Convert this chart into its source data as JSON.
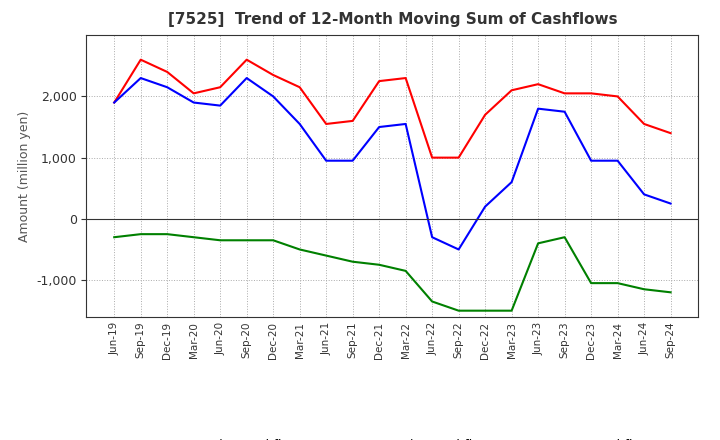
{
  "title": "[7525]  Trend of 12-Month Moving Sum of Cashflows",
  "ylabel": "Amount (million yen)",
  "x_labels": [
    "Jun-19",
    "Sep-19",
    "Dec-19",
    "Mar-20",
    "Jun-20",
    "Sep-20",
    "Dec-20",
    "Mar-21",
    "Jun-21",
    "Sep-21",
    "Dec-21",
    "Mar-22",
    "Jun-22",
    "Sep-22",
    "Dec-22",
    "Mar-23",
    "Jun-23",
    "Sep-23",
    "Dec-23",
    "Mar-24",
    "Jun-24",
    "Sep-24"
  ],
  "operating": [
    1900,
    2600,
    2400,
    2050,
    2150,
    2600,
    2350,
    2150,
    1550,
    1600,
    2250,
    2300,
    1000,
    1000,
    1700,
    2100,
    2200,
    2050,
    2050,
    2000,
    1550,
    1400
  ],
  "investing": [
    -300,
    -250,
    -250,
    -300,
    -350,
    -350,
    -350,
    -500,
    -600,
    -700,
    -750,
    -850,
    -1350,
    -1500,
    -1500,
    -1500,
    -400,
    -300,
    -1050,
    -1050,
    -1150,
    -1200
  ],
  "free": [
    1900,
    2300,
    2150,
    1900,
    1850,
    2300,
    2000,
    1550,
    950,
    950,
    1500,
    1550,
    -300,
    -500,
    200,
    600,
    1800,
    1750,
    950,
    950,
    400,
    250
  ],
  "operating_color": "#FF0000",
  "investing_color": "#008000",
  "free_color": "#0000FF",
  "ylim": [
    -1600,
    3000
  ],
  "yticks": [
    -1000,
    0,
    1000,
    2000
  ],
  "background_color": "#FFFFFF",
  "grid_color": "#AAAAAA"
}
